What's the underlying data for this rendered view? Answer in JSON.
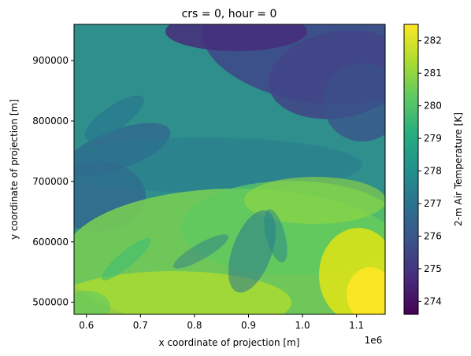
{
  "chart_data": {
    "type": "heatmap",
    "title": "crs = 0, hour = 0",
    "xlabel": "x coordinate of projection [m]",
    "ylabel": "y coordinate of projection [m]",
    "x_offset_label": "1e6",
    "xlim": [
      0.577,
      1.153
    ],
    "ylim": [
      480000,
      960000
    ],
    "x_ticks": [
      0.6,
      0.7,
      0.8,
      0.9,
      1.0,
      1.1
    ],
    "x_tick_labels": [
      "0.6",
      "0.7",
      "0.8",
      "0.9",
      "1.0",
      "1.1"
    ],
    "y_ticks": [
      500000,
      600000,
      700000,
      800000,
      900000
    ],
    "y_tick_labels": [
      "500000",
      "600000",
      "700000",
      "800000",
      "900000"
    ],
    "colorbar": {
      "label": "2-m Air Temperature [K]",
      "colormap": "viridis",
      "range": [
        273.6,
        282.5
      ],
      "ticks": [
        274,
        275,
        276,
        277,
        278,
        279,
        280,
        281,
        282
      ],
      "tick_labels": [
        "274",
        "275",
        "276",
        "277",
        "278",
        "279",
        "280",
        "281",
        "282"
      ]
    },
    "grid": false
  }
}
